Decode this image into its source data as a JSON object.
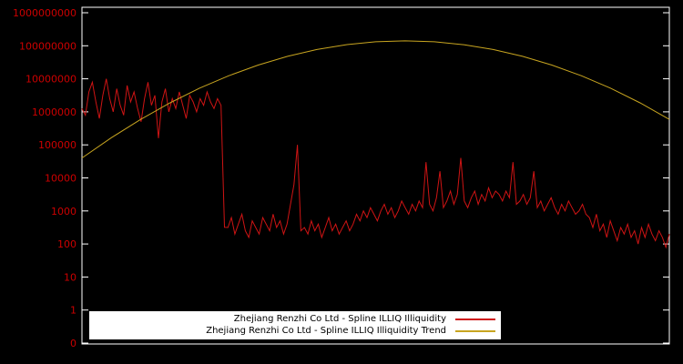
{
  "colors": {
    "background": "#000000",
    "frame": "#ffffff",
    "axis_text": "#cc0000",
    "illiq": "#cf1414",
    "trend": "#c8a520",
    "legend_bg": "#ffffff",
    "legend_text": "#000000"
  },
  "y_axis": {
    "tick_labels": [
      "1000000000",
      "100000000",
      "10000000",
      "1000000",
      "100000",
      "10000",
      "1000",
      "100",
      "10",
      "1",
      "0"
    ]
  },
  "legend": {
    "items": [
      {
        "label": "Zhejiang Renzhi Co Ltd - Spline ILLIQ Illiquidity"
      },
      {
        "label": "Zhejiang Renzhi Co Ltd - Spline ILLIQ Illiquidity Trend"
      }
    ]
  },
  "chart_data": {
    "type": "line",
    "title": "",
    "xlabel": "",
    "ylabel": "",
    "y_scale": "log10",
    "y_ticks": [
      1000000000,
      100000000,
      10000000,
      1000000,
      100000,
      10000,
      1000,
      100,
      10,
      1,
      0
    ],
    "grid": false,
    "legend_position": "bottom-center",
    "series": [
      {
        "name": "Zhejiang Renzhi Co Ltd - Spline ILLIQ Illiquidity",
        "color": "#cf1414",
        "values": [
          1260000,
          790000,
          4000000,
          7900000,
          2000000,
          630000,
          3160000,
          10000000,
          2510000,
          1000000,
          5010000,
          1580000,
          790000,
          6310000,
          2000000,
          4000000,
          1260000,
          500000,
          2510000,
          7900000,
          1580000,
          3160000,
          160000,
          2000000,
          5010000,
          1000000,
          2510000,
          1260000,
          4000000,
          1580000,
          630000,
          3160000,
          2000000,
          1000000,
          2510000,
          1580000,
          4000000,
          2000000,
          1260000,
          2510000,
          1580000,
          320,
          316,
          631,
          200,
          398,
          794,
          251,
          158,
          501,
          316,
          200,
          631,
          398,
          251,
          794,
          316,
          501,
          200,
          398,
          1585,
          6310,
          100000,
          251,
          316,
          200,
          501,
          251,
          398,
          158,
          316,
          631,
          251,
          398,
          200,
          316,
          501,
          251,
          398,
          794,
          501,
          1000,
          631,
          1259,
          794,
          501,
          1000,
          1585,
          794,
          1259,
          631,
          1000,
          1995,
          1259,
          794,
          1585,
          1000,
          1995,
          1259,
          30000,
          1585,
          1000,
          2512,
          15850,
          1259,
          1995,
          3981,
          1585,
          3162,
          40000,
          1995,
          1259,
          2512,
          3981,
          1585,
          3162,
          1995,
          5012,
          2512,
          3981,
          3162,
          1995,
          3981,
          2512,
          30000,
          1585,
          1995,
          3162,
          1585,
          2512,
          15850,
          1259,
          1995,
          1000,
          1585,
          2512,
          1259,
          794,
          1585,
          1000,
          1995,
          1259,
          794,
          1000,
          1585,
          794,
          631,
          316,
          794,
          251,
          398,
          158,
          501,
          251,
          126,
          316,
          200,
          398,
          158,
          251,
          100,
          316,
          158,
          398,
          200,
          126,
          251,
          158,
          79,
          200
        ]
      },
      {
        "name": "Zhejiang Renzhi Co Ltd - Spline ILLIQ Illiquidity Trend",
        "color": "#c8a520",
        "values": [
          40000,
          165000,
          590000,
          1870000,
          5200000,
          12400000,
          26000000,
          48000000,
          77000000,
          108000000,
          132000000,
          141000000,
          132000000,
          108000000,
          77000000,
          48000000,
          26000000,
          12400000,
          5200000,
          1870000,
          590000
        ]
      }
    ]
  }
}
